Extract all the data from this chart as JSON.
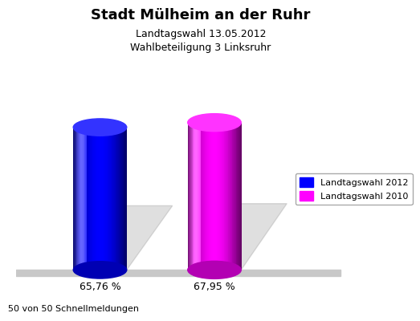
{
  "title": "Stadt Mülheim an der Ruhr",
  "subtitle1": "Landtagswahl 13.05.2012",
  "subtitle2": "Wahlbeteiligung 3 Linksruhr",
  "values": [
    65.76,
    67.95
  ],
  "labels": [
    "65,76 %",
    "67,95 %"
  ],
  "bar_colors": [
    "#0000ff",
    "#ff00ff"
  ],
  "legend_labels": [
    "Landtagswahl 2012",
    "Landtagswahl 2010"
  ],
  "footer": "50 von 50 Schnellmeldungen",
  "background_color": "#f0f0f0",
  "ylim_max": 100,
  "bar_positions": [
    0.22,
    0.52
  ],
  "bar_width": 0.14,
  "title_fontsize": 13,
  "subtitle_fontsize": 9,
  "label_fontsize": 9,
  "legend_fontsize": 8,
  "footer_fontsize": 8
}
